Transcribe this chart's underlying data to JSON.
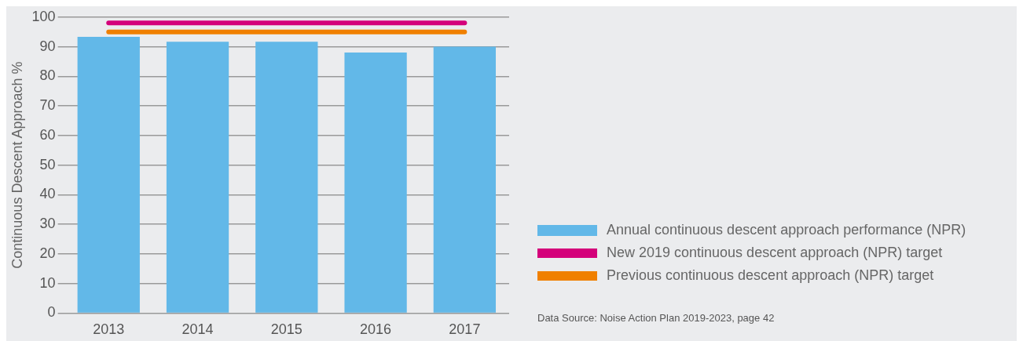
{
  "chart_data": {
    "type": "bar",
    "ylabel": "Continuous Descent Approach %",
    "categories": [
      "2013",
      "2014",
      "2015",
      "2016",
      "2017"
    ],
    "series": [
      {
        "name": "Annual continuous descent approach performance (NPR)",
        "color": "#62b8e8",
        "values": [
          93.3,
          91.7,
          91.7,
          88,
          90
        ]
      },
      {
        "name": "New 2019 continuous descent approach (NPR) target",
        "color": "#d4007a",
        "type": "line",
        "values": [
          98,
          98,
          98,
          98,
          98
        ]
      },
      {
        "name": "Previous continuous descent approach (NPR) target",
        "color": "#f08000",
        "type": "line",
        "values": [
          95,
          95,
          95,
          95,
          95
        ]
      }
    ],
    "ylim": [
      0,
      100
    ],
    "yticks": [
      0,
      10,
      20,
      30,
      40,
      50,
      60,
      70,
      80,
      90,
      100
    ],
    "grid": "y",
    "legend": "bottom right",
    "marker": "none",
    "annotations": [
      "Data Source: Noise Action Plan 2019-2023, page 42"
    ]
  }
}
